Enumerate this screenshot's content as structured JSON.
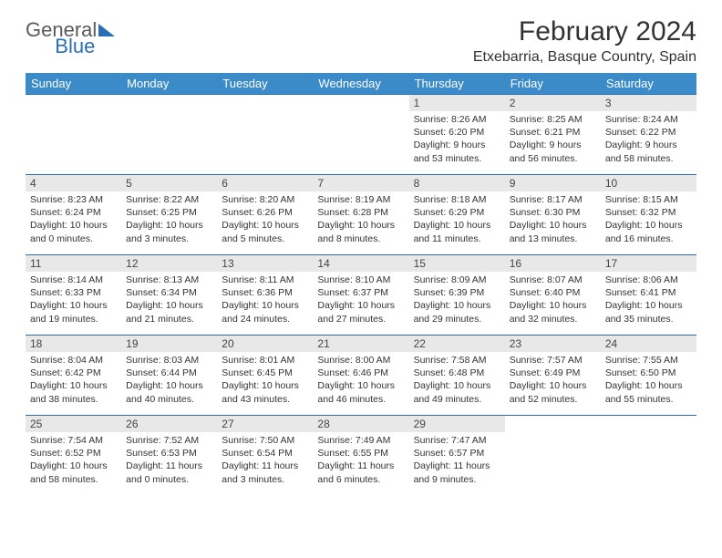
{
  "brand": {
    "part1": "General",
    "part2": "Blue"
  },
  "title": "February 2024",
  "location": "Etxebarria, Basque Country, Spain",
  "colors": {
    "header_bg": "#3b8bc9",
    "header_text": "#ffffff",
    "border": "#2a6fb5",
    "daynum_bg": "#e8e8e8",
    "body_text": "#333333"
  },
  "typography": {
    "title_fontsize": 30,
    "location_fontsize": 16,
    "header_fontsize": 13,
    "daynum_fontsize": 12,
    "body_fontsize": 10.5
  },
  "weekdays": [
    "Sunday",
    "Monday",
    "Tuesday",
    "Wednesday",
    "Thursday",
    "Friday",
    "Saturday"
  ],
  "first_weekday_index": 4,
  "days": [
    {
      "n": 1,
      "sunrise": "8:26 AM",
      "sunset": "6:20 PM",
      "daylight": "9 hours and 53 minutes."
    },
    {
      "n": 2,
      "sunrise": "8:25 AM",
      "sunset": "6:21 PM",
      "daylight": "9 hours and 56 minutes."
    },
    {
      "n": 3,
      "sunrise": "8:24 AM",
      "sunset": "6:22 PM",
      "daylight": "9 hours and 58 minutes."
    },
    {
      "n": 4,
      "sunrise": "8:23 AM",
      "sunset": "6:24 PM",
      "daylight": "10 hours and 0 minutes."
    },
    {
      "n": 5,
      "sunrise": "8:22 AM",
      "sunset": "6:25 PM",
      "daylight": "10 hours and 3 minutes."
    },
    {
      "n": 6,
      "sunrise": "8:20 AM",
      "sunset": "6:26 PM",
      "daylight": "10 hours and 5 minutes."
    },
    {
      "n": 7,
      "sunrise": "8:19 AM",
      "sunset": "6:28 PM",
      "daylight": "10 hours and 8 minutes."
    },
    {
      "n": 8,
      "sunrise": "8:18 AM",
      "sunset": "6:29 PM",
      "daylight": "10 hours and 11 minutes."
    },
    {
      "n": 9,
      "sunrise": "8:17 AM",
      "sunset": "6:30 PM",
      "daylight": "10 hours and 13 minutes."
    },
    {
      "n": 10,
      "sunrise": "8:15 AM",
      "sunset": "6:32 PM",
      "daylight": "10 hours and 16 minutes."
    },
    {
      "n": 11,
      "sunrise": "8:14 AM",
      "sunset": "6:33 PM",
      "daylight": "10 hours and 19 minutes."
    },
    {
      "n": 12,
      "sunrise": "8:13 AM",
      "sunset": "6:34 PM",
      "daylight": "10 hours and 21 minutes."
    },
    {
      "n": 13,
      "sunrise": "8:11 AM",
      "sunset": "6:36 PM",
      "daylight": "10 hours and 24 minutes."
    },
    {
      "n": 14,
      "sunrise": "8:10 AM",
      "sunset": "6:37 PM",
      "daylight": "10 hours and 27 minutes."
    },
    {
      "n": 15,
      "sunrise": "8:09 AM",
      "sunset": "6:39 PM",
      "daylight": "10 hours and 29 minutes."
    },
    {
      "n": 16,
      "sunrise": "8:07 AM",
      "sunset": "6:40 PM",
      "daylight": "10 hours and 32 minutes."
    },
    {
      "n": 17,
      "sunrise": "8:06 AM",
      "sunset": "6:41 PM",
      "daylight": "10 hours and 35 minutes."
    },
    {
      "n": 18,
      "sunrise": "8:04 AM",
      "sunset": "6:42 PM",
      "daylight": "10 hours and 38 minutes."
    },
    {
      "n": 19,
      "sunrise": "8:03 AM",
      "sunset": "6:44 PM",
      "daylight": "10 hours and 40 minutes."
    },
    {
      "n": 20,
      "sunrise": "8:01 AM",
      "sunset": "6:45 PM",
      "daylight": "10 hours and 43 minutes."
    },
    {
      "n": 21,
      "sunrise": "8:00 AM",
      "sunset": "6:46 PM",
      "daylight": "10 hours and 46 minutes."
    },
    {
      "n": 22,
      "sunrise": "7:58 AM",
      "sunset": "6:48 PM",
      "daylight": "10 hours and 49 minutes."
    },
    {
      "n": 23,
      "sunrise": "7:57 AM",
      "sunset": "6:49 PM",
      "daylight": "10 hours and 52 minutes."
    },
    {
      "n": 24,
      "sunrise": "7:55 AM",
      "sunset": "6:50 PM",
      "daylight": "10 hours and 55 minutes."
    },
    {
      "n": 25,
      "sunrise": "7:54 AM",
      "sunset": "6:52 PM",
      "daylight": "10 hours and 58 minutes."
    },
    {
      "n": 26,
      "sunrise": "7:52 AM",
      "sunset": "6:53 PM",
      "daylight": "11 hours and 0 minutes."
    },
    {
      "n": 27,
      "sunrise": "7:50 AM",
      "sunset": "6:54 PM",
      "daylight": "11 hours and 3 minutes."
    },
    {
      "n": 28,
      "sunrise": "7:49 AM",
      "sunset": "6:55 PM",
      "daylight": "11 hours and 6 minutes."
    },
    {
      "n": 29,
      "sunrise": "7:47 AM",
      "sunset": "6:57 PM",
      "daylight": "11 hours and 9 minutes."
    }
  ],
  "labels": {
    "sunrise": "Sunrise:",
    "sunset": "Sunset:",
    "daylight": "Daylight:"
  }
}
